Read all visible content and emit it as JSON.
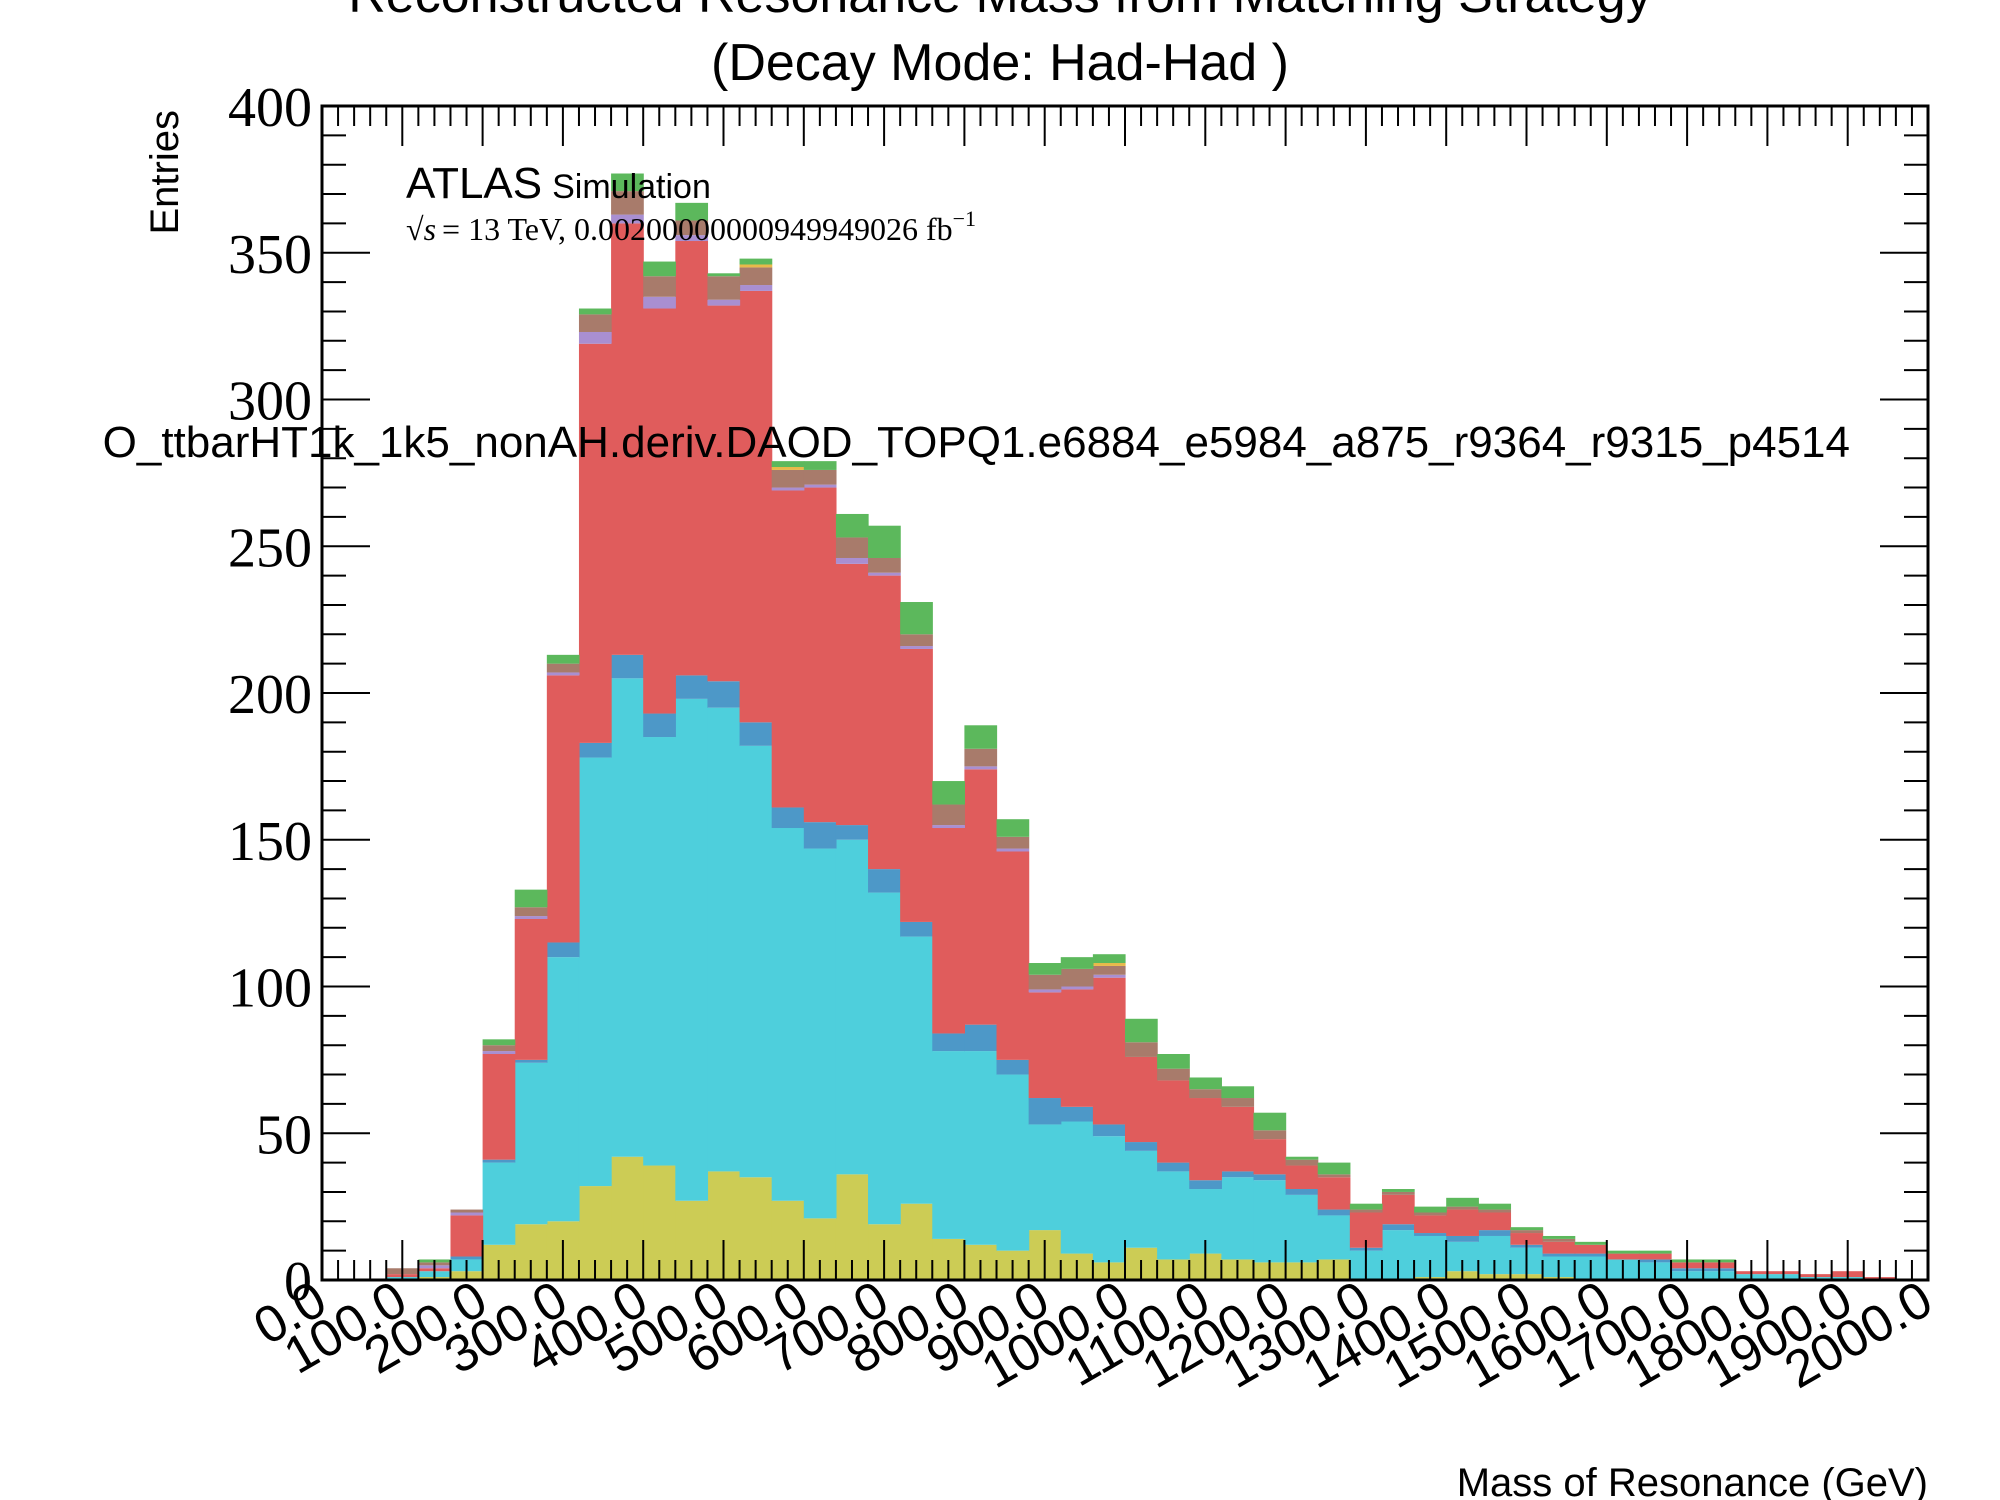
{
  "chart_data": {
    "type": "bar",
    "stacked": true,
    "title_line1": "Reconstructed Resonance Mass from Matching Strategy",
    "title_line2": "(Decay Mode: Had-Had )",
    "xlabel": "Mass of Resonance (GeV)",
    "ylabel": "Entries",
    "xlim": [
      0,
      2000
    ],
    "ylim": [
      0,
      400
    ],
    "bin_width": 40,
    "x_tick_labels": [
      "0.0",
      "100.0",
      "200.0",
      "300.0",
      "400.0",
      "500.0",
      "600.0",
      "700.0",
      "800.0",
      "900.0",
      "1000.0",
      "1100.0",
      "1200.0",
      "1300.0",
      "1400.0",
      "1500.0",
      "1600.0",
      "1700.0",
      "1800.0",
      "1900.0",
      "2000.0"
    ],
    "y_tick_labels": [
      "0",
      "50",
      "100",
      "150",
      "200",
      "250",
      "300",
      "350",
      "400"
    ],
    "atlas_label": "ATLAS",
    "atlas_sub": "Simulation",
    "lumi_prefix": "s",
    "lumi_text": "= 13 TeV, 0.00200000000949949026 fb",
    "lumi_exp": "−1",
    "sample_label": "O_ttbarHT1k_1k5_nonAH.deriv.DAOD_TOPQ1.e6884_e5984_a875_r9364_r9315_p4514",
    "grid": false,
    "series": [
      {
        "color": "#cccc55",
        "values": [
          0,
          0,
          0,
          1,
          3,
          12,
          19,
          20,
          32,
          42,
          39,
          27,
          37,
          35,
          27,
          21,
          36,
          19,
          26,
          14,
          12,
          10,
          17,
          9,
          6,
          11,
          7,
          9,
          7,
          6,
          6,
          7,
          0,
          0,
          1,
          3,
          2,
          2,
          1,
          0,
          0,
          0,
          0,
          0,
          0,
          0,
          0,
          0,
          0,
          0
        ]
      },
      {
        "color": "#4ecfdc",
        "values": [
          0,
          0,
          1,
          2,
          4,
          28,
          55,
          90,
          146,
          163,
          146,
          171,
          158,
          147,
          127,
          126,
          114,
          113,
          91,
          64,
          66,
          60,
          36,
          45,
          43,
          33,
          30,
          22,
          28,
          28,
          23,
          15,
          10,
          17,
          14,
          10,
          13,
          9,
          7,
          8,
          7,
          6,
          3,
          3,
          2,
          2,
          1,
          1,
          0,
          0
        ]
      },
      {
        "color": "#4d98c8",
        "values": [
          0,
          0,
          0,
          0,
          1,
          1,
          1,
          5,
          5,
          8,
          8,
          8,
          9,
          8,
          7,
          9,
          5,
          8,
          5,
          6,
          9,
          5,
          9,
          5,
          4,
          3,
          3,
          3,
          2,
          2,
          2,
          2,
          1,
          2,
          1,
          2,
          2,
          1,
          1,
          1,
          0,
          1,
          1,
          1,
          0,
          0,
          0,
          0,
          0,
          0
        ]
      },
      {
        "color": "#e05c5c",
        "values": [
          0,
          0,
          1,
          1,
          14,
          36,
          48,
          91,
          136,
          147,
          138,
          148,
          128,
          147,
          108,
          114,
          89,
          100,
          93,
          70,
          87,
          71,
          36,
          40,
          50,
          29,
          28,
          28,
          22,
          12,
          8,
          11,
          12,
          10,
          6,
          9,
          6,
          4,
          4,
          3,
          2,
          2,
          2,
          2,
          1,
          1,
          1,
          2,
          1,
          0
        ]
      },
      {
        "color": "#a98fd1",
        "values": [
          0,
          0,
          0,
          1,
          1,
          1,
          1,
          1,
          4,
          3,
          4,
          2,
          2,
          2,
          1,
          1,
          2,
          1,
          1,
          1,
          1,
          1,
          1,
          1,
          1,
          0,
          0,
          0,
          0,
          0,
          0,
          0,
          0,
          0,
          0,
          0,
          0,
          0,
          0,
          0,
          0,
          0,
          0,
          0,
          0,
          0,
          0,
          0,
          0,
          0
        ]
      },
      {
        "color": "#a87b6b",
        "values": [
          0,
          0,
          2,
          1,
          1,
          2,
          3,
          3,
          6,
          8,
          7,
          5,
          8,
          6,
          6,
          5,
          7,
          5,
          4,
          7,
          6,
          4,
          5,
          6,
          3,
          5,
          4,
          3,
          3,
          3,
          2,
          1,
          1,
          1,
          1,
          1,
          1,
          1,
          1,
          0,
          0,
          0,
          0,
          0,
          0,
          0,
          0,
          0,
          0,
          0
        ]
      },
      {
        "color": "#e8b94a",
        "values": [
          0,
          0,
          0,
          0,
          0,
          0,
          0,
          0,
          0,
          0,
          0,
          0,
          0,
          1,
          1,
          0,
          0,
          0,
          0,
          0,
          0,
          0,
          0,
          0,
          1,
          0,
          0,
          0,
          0,
          0,
          0,
          0,
          0,
          0,
          0,
          0,
          0,
          0,
          0,
          0,
          0,
          0,
          0,
          0,
          0,
          0,
          0,
          0,
          0,
          0
        ]
      },
      {
        "color": "#5cb85c",
        "values": [
          0,
          0,
          0,
          1,
          0,
          2,
          6,
          3,
          2,
          6,
          5,
          6,
          1,
          2,
          2,
          3,
          8,
          11,
          11,
          8,
          8,
          6,
          4,
          4,
          3,
          8,
          5,
          4,
          4,
          6,
          1,
          4,
          2,
          1,
          2,
          3,
          2,
          1,
          1,
          1,
          1,
          1,
          1,
          1,
          0,
          0,
          0,
          0,
          0,
          0
        ]
      }
    ]
  }
}
